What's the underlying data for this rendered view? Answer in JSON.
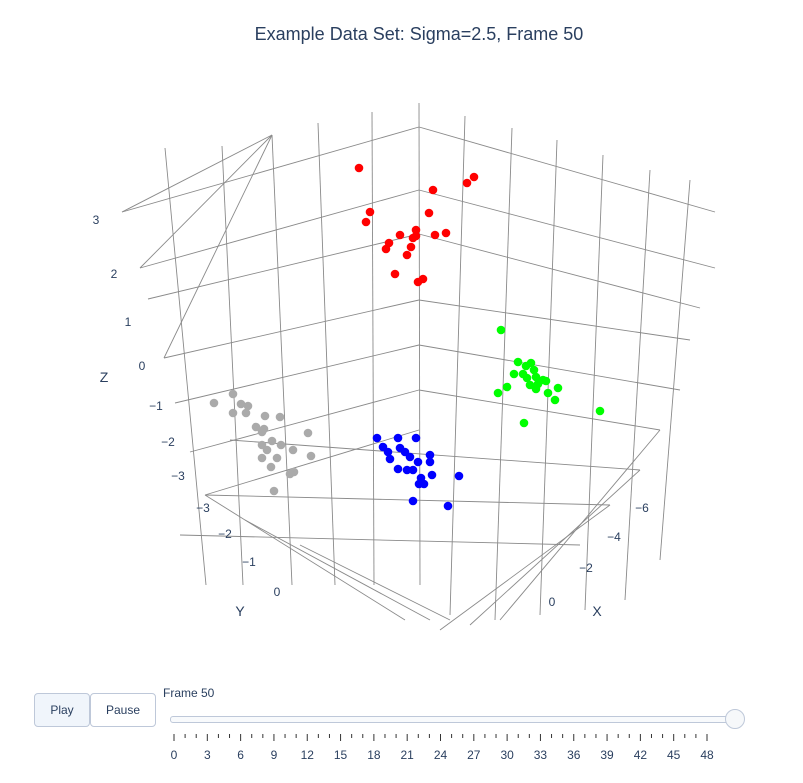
{
  "title": "Example Data Set: Sigma=2.5, Frame 50",
  "controls": {
    "play_label": "Play",
    "pause_label": "Pause"
  },
  "slider": {
    "current_label": "Frame 50",
    "ticks": [
      "0",
      "3",
      "6",
      "9",
      "12",
      "15",
      "18",
      "21",
      "24",
      "27",
      "30",
      "33",
      "36",
      "39",
      "42",
      "45",
      "48"
    ],
    "value_fraction": 1.0
  },
  "chart_data": {
    "type": "scatter",
    "mode": "3d",
    "title": "Example Data Set: Sigma=2.5, Frame 50",
    "axes": {
      "x": {
        "label": "X",
        "ticks": [
          "0",
          "−2",
          "−4",
          "−6"
        ]
      },
      "y": {
        "label": "Y",
        "ticks": [
          "0",
          "−1",
          "−2",
          "−3"
        ]
      },
      "z": {
        "label": "Z",
        "ticks": [
          "3",
          "2",
          "1",
          "0",
          "−1",
          "−2",
          "−3"
        ]
      }
    },
    "series": [
      {
        "color": "#ff0000",
        "points": [
          [
            359,
            168
          ],
          [
            474,
            177
          ],
          [
            467,
            183
          ],
          [
            433,
            190
          ],
          [
            370,
            212
          ],
          [
            366,
            222
          ],
          [
            429,
            213
          ],
          [
            416,
            230
          ],
          [
            413,
            238
          ],
          [
            400,
            235
          ],
          [
            446,
            233
          ],
          [
            435,
            235
          ],
          [
            416,
            236
          ],
          [
            389,
            243
          ],
          [
            386,
            249
          ],
          [
            411,
            247
          ],
          [
            407,
            255
          ],
          [
            423,
            279
          ],
          [
            418,
            282
          ],
          [
            395,
            274
          ]
        ]
      },
      {
        "color": "#00ff00",
        "points": [
          [
            501,
            330
          ],
          [
            518,
            362
          ],
          [
            526,
            366
          ],
          [
            531,
            363
          ],
          [
            514,
            374
          ],
          [
            534,
            370
          ],
          [
            523,
            374
          ],
          [
            527,
            378
          ],
          [
            536,
            377
          ],
          [
            543,
            380
          ],
          [
            538,
            384
          ],
          [
            546,
            381
          ],
          [
            507,
            387
          ],
          [
            530,
            385
          ],
          [
            548,
            393
          ],
          [
            558,
            388
          ],
          [
            536,
            389
          ],
          [
            555,
            400
          ],
          [
            498,
            393
          ],
          [
            600,
            411
          ],
          [
            524,
            423
          ]
        ]
      },
      {
        "color": "#0000ff",
        "points": [
          [
            377,
            438
          ],
          [
            398,
            438
          ],
          [
            416,
            438
          ],
          [
            383,
            447
          ],
          [
            400,
            448
          ],
          [
            388,
            452
          ],
          [
            405,
            452
          ],
          [
            390,
            459
          ],
          [
            410,
            457
          ],
          [
            430,
            455
          ],
          [
            418,
            462
          ],
          [
            430,
            462
          ],
          [
            413,
            470
          ],
          [
            398,
            469
          ],
          [
            407,
            470
          ],
          [
            421,
            478
          ],
          [
            432,
            475
          ],
          [
            459,
            476
          ],
          [
            419,
            484
          ],
          [
            424,
            484
          ],
          [
            413,
            501
          ],
          [
            448,
            506
          ]
        ]
      },
      {
        "color": "#aaaaaa",
        "points": [
          [
            233,
            394
          ],
          [
            214,
            403
          ],
          [
            241,
            404
          ],
          [
            248,
            406
          ],
          [
            246,
            413
          ],
          [
            233,
            413
          ],
          [
            265,
            416
          ],
          [
            280,
            417
          ],
          [
            256,
            427
          ],
          [
            264,
            429
          ],
          [
            262,
            432
          ],
          [
            308,
            433
          ],
          [
            272,
            441
          ],
          [
            262,
            445
          ],
          [
            281,
            445
          ],
          [
            267,
            450
          ],
          [
            293,
            450
          ],
          [
            311,
            456
          ],
          [
            277,
            458
          ],
          [
            262,
            458
          ],
          [
            271,
            467
          ],
          [
            294,
            472
          ],
          [
            290,
            474
          ],
          [
            274,
            491
          ]
        ]
      }
    ]
  }
}
